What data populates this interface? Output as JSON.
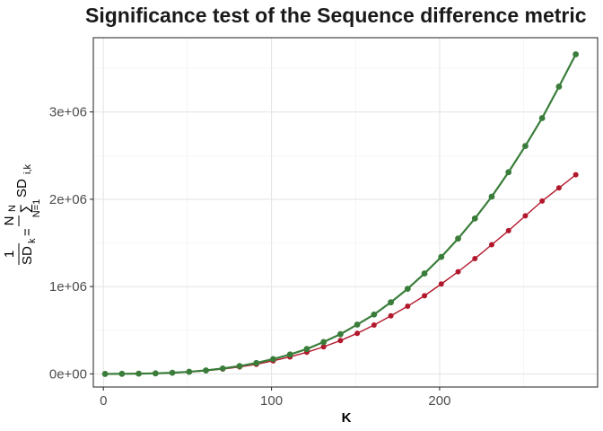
{
  "chart_data": {
    "type": "line",
    "title": "Significance test of the Sequence difference metric",
    "xlabel": "K",
    "ylabel": {
      "frac_num": "1",
      "frac_den": "N",
      "lhs": "SD",
      "lhs_sub": "k",
      "equals": "=",
      "sum": "∑",
      "sum_top": "N",
      "sum_bottom": "N=1",
      "rhs": "SD",
      "rhs_sub": "i,k"
    },
    "xlim": [
      -6,
      294
    ],
    "ylim": [
      -150000,
      3850000
    ],
    "x_ticks": [
      0,
      100,
      200
    ],
    "x_tick_labels": [
      "0",
      "100",
      "200"
    ],
    "y_ticks": [
      0,
      1000000,
      2000000,
      3000000
    ],
    "y_tick_labels": [
      "0e+00",
      "1e+06",
      "2e+06",
      "3e+06"
    ],
    "grid": true,
    "legend": "none",
    "x": [
      1,
      11,
      21,
      31,
      41,
      51,
      61,
      71,
      81,
      91,
      101,
      111,
      121,
      131,
      141,
      151,
      161,
      171,
      181,
      191,
      201,
      211,
      221,
      231,
      241,
      251,
      261,
      271,
      281
    ],
    "series": [
      {
        "color": "#b2182b",
        "values": [
          0,
          1000,
          3000,
          6000,
          12000,
          22000,
          36000,
          56000,
          80000,
          110000,
          150000,
          195000,
          248000,
          310000,
          382000,
          465000,
          560000,
          665000,
          775000,
          895000,
          1030000,
          1170000,
          1320000,
          1480000,
          1640000,
          1810000,
          1980000,
          2130000,
          2280000
        ]
      },
      {
        "color": "#3a7d3a",
        "values": [
          0,
          1000,
          3000,
          6000,
          13000,
          24000,
          40000,
          62000,
          90000,
          125000,
          170000,
          222000,
          285000,
          365000,
          455000,
          565000,
          680000,
          820000,
          975000,
          1150000,
          1340000,
          1550000,
          1780000,
          2030000,
          2310000,
          2610000,
          2930000,
          3290000,
          3660000
        ]
      }
    ]
  }
}
